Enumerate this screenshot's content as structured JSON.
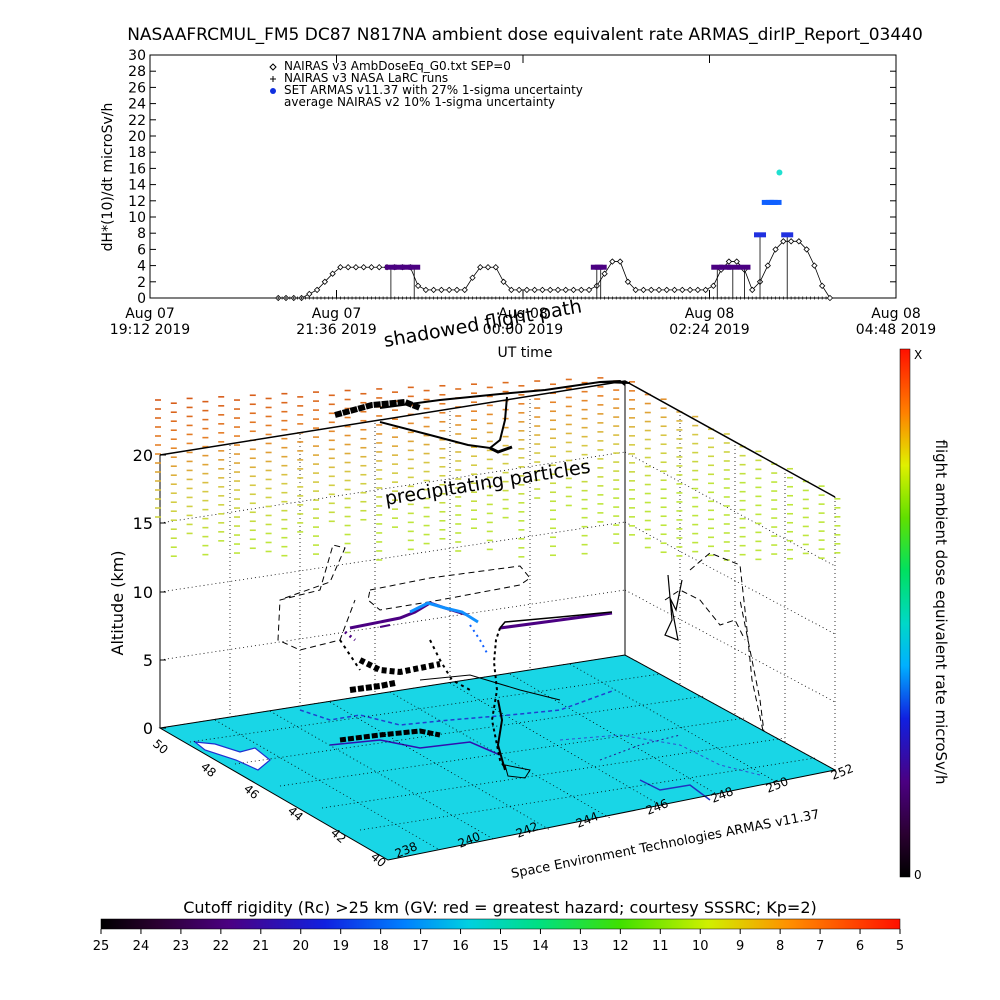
{
  "chart_data": [
    {
      "type": "line",
      "title": "NASAAFRCMUL_FM5 DC87 N817NA ambient dose equivalent rate ARMAS_dirIP_Report_03440",
      "ylabel": "dH*(10)/dt microSv/h",
      "xlabel": "UT time",
      "ylim": [
        0,
        30
      ],
      "yticks": [
        0,
        2,
        4,
        6,
        8,
        10,
        12,
        14,
        16,
        18,
        20,
        22,
        24,
        26,
        28,
        30
      ],
      "xticks": [
        {
          "l1": "Aug 07",
          "l2": "19:12 2019"
        },
        {
          "l1": "Aug 07",
          "l2": "21:36 2019"
        },
        {
          "l1": "Aug 08",
          "l2": "00:00 2019"
        },
        {
          "l1": "Aug 08",
          "l2": "02:24 2019"
        },
        {
          "l1": "Aug 08",
          "l2": "04:48 2019"
        }
      ],
      "xlim_hours": [
        19.2,
        28.8
      ],
      "legend_position": "top-left",
      "legend": [
        {
          "symbol": "◇",
          "label": "NAIRAS v3 AmbDoseEq_G0.txt SEP=0",
          "color": "#000000"
        },
        {
          "symbol": "+",
          "label": "NAIRAS v3 NASA LaRC runs",
          "color": "#000000"
        },
        {
          "symbol": "●",
          "label": "SET ARMAS v11.37 with 27% 1-sigma uncertainty",
          "color": "#1030e0"
        },
        {
          "symbol": "",
          "label": "average NAIRAS v2 10% 1-sigma uncertainty",
          "color": "#000000"
        }
      ],
      "series": [
        {
          "marker": "diamond",
          "x": [
            20.85,
            20.95,
            21.05,
            21.15,
            21.25,
            21.35,
            21.45,
            21.55,
            21.65,
            21.75,
            21.85,
            21.95,
            22.05,
            22.15,
            22.25,
            22.35,
            22.45,
            22.55,
            22.65,
            22.75,
            22.85,
            22.95,
            23.05,
            23.15,
            23.25,
            23.35,
            23.45,
            23.55,
            23.65,
            23.75,
            23.85,
            23.95,
            24.05,
            24.15,
            24.25,
            24.35,
            24.45,
            24.55,
            24.65,
            24.75,
            24.85,
            24.95,
            25.05,
            25.15,
            25.25,
            25.35,
            25.45,
            25.55,
            25.65,
            25.75,
            25.85,
            25.95,
            26.05,
            26.15,
            26.25,
            26.35,
            26.45,
            26.55,
            26.65,
            26.75,
            26.85,
            26.95,
            27.05,
            27.15,
            27.25,
            27.35,
            27.45,
            27.55,
            27.65,
            27.75,
            27.85,
            27.95
          ],
          "y": [
            0,
            0,
            0,
            0,
            0.5,
            1,
            2,
            3,
            3.8,
            3.8,
            3.8,
            3.8,
            3.8,
            3.8,
            3.8,
            3.8,
            3.8,
            3.8,
            1.5,
            1,
            1,
            1,
            1,
            1,
            1,
            2.5,
            3.8,
            3.8,
            3.8,
            2,
            1,
            1,
            1,
            1,
            1,
            1,
            1,
            1,
            1,
            1,
            1,
            1.5,
            3,
            4.5,
            4.5,
            2,
            1,
            1,
            1,
            1,
            1,
            1,
            1,
            1,
            1,
            1,
            1.5,
            3.5,
            4.5,
            4.5,
            3.5,
            1,
            2,
            4,
            6,
            7,
            7,
            7,
            6,
            4,
            1.5,
            0
          ]
        },
        {
          "marker": "filled-circle",
          "name": "SET ARMAS v11.37",
          "x": [
            22.3,
            22.4,
            22.5,
            22.6,
            24.95,
            25.0,
            26.5,
            26.6,
            26.7,
            26.85,
            27.05,
            27.15,
            27.2,
            27.25,
            27.3,
            27.4
          ],
          "y": [
            3.8,
            3.8,
            3.8,
            3.8,
            3.8,
            3.8,
            3.8,
            3.8,
            3.8,
            3.8,
            7.8,
            11.8,
            11.8,
            11.8,
            15.5,
            7.8
          ]
        }
      ]
    },
    {
      "type": "scatter",
      "annotations": {
        "shadowed": "shadowed flight path",
        "precip": "precipitating particles"
      },
      "zlabel": "Altitude (km)",
      "zticks": [
        "0",
        "5",
        "10",
        "15",
        "20"
      ],
      "lat_ticks": [
        "50",
        "48",
        "46",
        "44",
        "42",
        "40"
      ],
      "lon_ticks": [
        "238",
        "240",
        "242",
        "244",
        "246",
        "248",
        "250",
        "252"
      ],
      "credit": "Space Environment Technologies ARMAS v11.37",
      "colorbar_label": "flight ambient dose equivalent rate microSv/h",
      "colorbar_top": "X",
      "colorbar_bottom": "0"
    },
    {
      "type": "heatmap",
      "title": "Cutoff rigidity (Rc) >25 km (GV: red = greatest hazard; courtesy SSSRC; Kp=2)",
      "ticks": [
        "25",
        "24",
        "23",
        "22",
        "21",
        "20",
        "19",
        "18",
        "17",
        "16",
        "15",
        "14",
        "13",
        "12",
        "11",
        "10",
        "9",
        "8",
        "7",
        "6",
        "5"
      ],
      "colors": [
        "#000000",
        "#2a0030",
        "#4b0082",
        "#2c2ad8",
        "#0070ff",
        "#00c0ff",
        "#00d8c8",
        "#00e080",
        "#40e000",
        "#c8f000",
        "#ffd000",
        "#ff7000",
        "#ff1e00"
      ]
    }
  ]
}
